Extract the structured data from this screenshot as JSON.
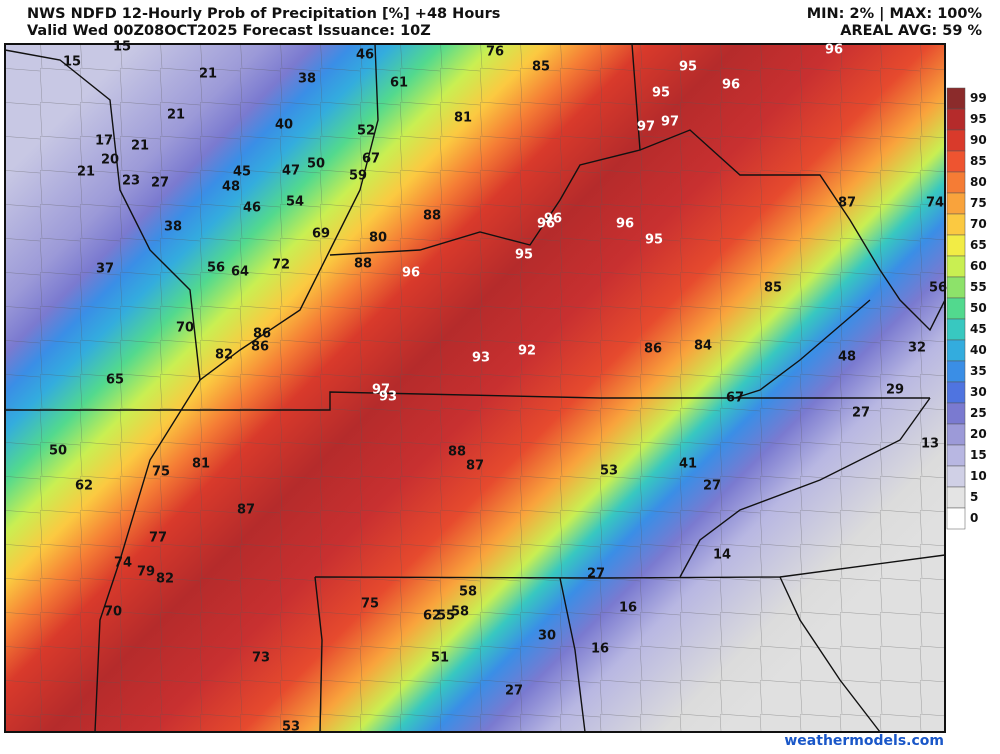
{
  "header": {
    "title": "NWS NDFD 12-Hourly Prob of Precipitation [%] +48 Hours",
    "valid": "Valid Wed 00Z08OCT2025   Forecast Issuance: 10Z",
    "minmax": "MIN: 2% | MAX: 100%",
    "areal_avg": "AREAL AVG: 59 %"
  },
  "map": {
    "labels": [
      15,
      15,
      46,
      76,
      85,
      95,
      96,
      21,
      38,
      61,
      95,
      96,
      21,
      40,
      52,
      81,
      97,
      97,
      17,
      21,
      20,
      45,
      47,
      50,
      67,
      21,
      23,
      27,
      48,
      59,
      87,
      74,
      46,
      54,
      88,
      96,
      96,
      96,
      38,
      69,
      80,
      95,
      95,
      37,
      56,
      64,
      72,
      88,
      96,
      85,
      56,
      70,
      86,
      86,
      82,
      93,
      92,
      86,
      84,
      48,
      32,
      65,
      97,
      93,
      67,
      29,
      27,
      50,
      13,
      88,
      87,
      81,
      75,
      53,
      41,
      62,
      27,
      87,
      77,
      74,
      79,
      82,
      14,
      27,
      58,
      75,
      16,
      62,
      55,
      58,
      70,
      30,
      16,
      73,
      51,
      27,
      53
    ]
  },
  "colorbar": {
    "labels": [
      99,
      95,
      90,
      85,
      80,
      75,
      70,
      65,
      60,
      55,
      50,
      45,
      40,
      35,
      30,
      25,
      20,
      15,
      10,
      5,
      0
    ],
    "colors": [
      "#8b2b2b",
      "#b52b2b",
      "#d93a2b",
      "#ee5430",
      "#f57c35",
      "#f9a33c",
      "#fbc941",
      "#f2ec45",
      "#c9ef52",
      "#8de26a",
      "#52d98e",
      "#38c8c0",
      "#33acde",
      "#3a8ee6",
      "#4f74e0",
      "#7a7ad0",
      "#9c9ad8",
      "#b8b7e2",
      "#d0d0e6",
      "#e4e4e4",
      "#ffffff"
    ]
  },
  "footer": "weathermodels.com"
}
